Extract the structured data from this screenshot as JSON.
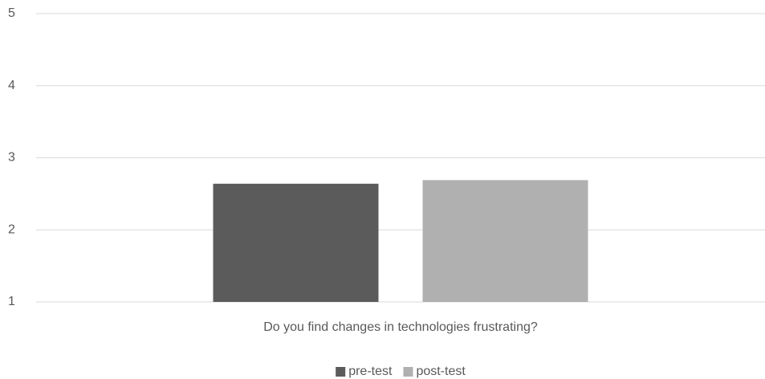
{
  "chart_data": {
    "type": "bar",
    "categories": [
      "Do you find changes in technologies frustrating?"
    ],
    "series": [
      {
        "name": "pre-test",
        "color": "#5b5b5b",
        "values": [
          2.64
        ]
      },
      {
        "name": "post-test",
        "color": "#b0b0b0",
        "values": [
          2.69
        ]
      }
    ],
    "ylim": [
      1,
      5
    ],
    "yticks": [
      1,
      2,
      3,
      4,
      5
    ],
    "grid": true,
    "legend": "bottom"
  }
}
